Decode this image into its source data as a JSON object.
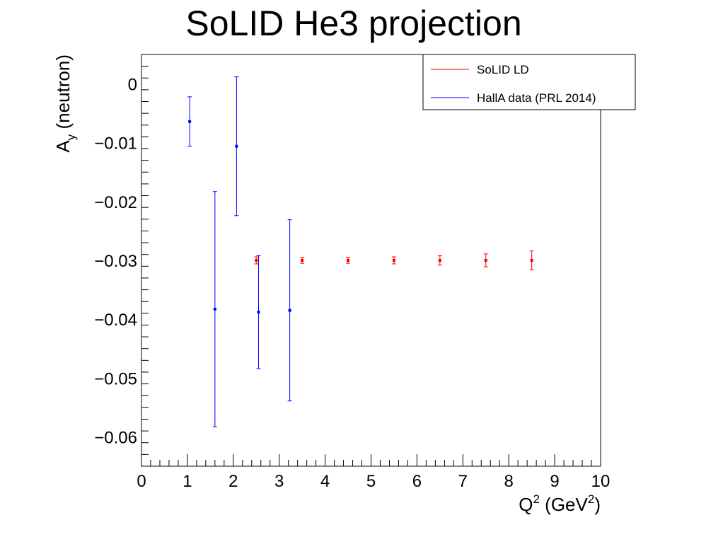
{
  "chart_data": {
    "type": "scatter",
    "title": "SoLID He3 projection",
    "xlabel": {
      "base": "Q",
      "sup": "2",
      "mid": " (GeV",
      "sup2": "2",
      "end": ")"
    },
    "ylabel": {
      "base": "A",
      "sub": "y",
      "rest": " (neutron)"
    },
    "xlim": [
      0,
      10
    ],
    "ylim": [
      -0.065,
      0.005
    ],
    "xticks": [
      0,
      1,
      2,
      3,
      4,
      5,
      6,
      7,
      8,
      9,
      10
    ],
    "xtick_labels": [
      "0",
      "1",
      "2",
      "3",
      "4",
      "5",
      "6",
      "7",
      "8",
      "9",
      "10"
    ],
    "yticks": [
      0,
      -0.01,
      -0.02,
      -0.03,
      -0.04,
      -0.05,
      -0.06
    ],
    "ytick_labels": [
      "0",
      "−0.01",
      "−0.02",
      "−0.03",
      "−0.04",
      "−0.05",
      "−0.06"
    ],
    "grid": false,
    "legend_position": "top-right",
    "series": [
      {
        "name": "SoLID LD",
        "color": "#ff0000",
        "points": [
          {
            "x": 2.5,
            "y": -0.03,
            "err": 0.0006
          },
          {
            "x": 3.5,
            "y": -0.03,
            "err": 0.0005
          },
          {
            "x": 4.5,
            "y": -0.03,
            "err": 0.0005
          },
          {
            "x": 5.5,
            "y": -0.03,
            "err": 0.0006
          },
          {
            "x": 6.5,
            "y": -0.03,
            "err": 0.0008
          },
          {
            "x": 7.5,
            "y": -0.03,
            "err": 0.0011
          },
          {
            "x": 8.5,
            "y": -0.03,
            "err": 0.0016
          }
        ]
      },
      {
        "name": "HallA data (PRL 2014)",
        "color": "#0000ff",
        "points": [
          {
            "x": 1.05,
            "y": -0.0064,
            "err": 0.0042
          },
          {
            "x": 1.6,
            "y": -0.0383,
            "err": 0.02
          },
          {
            "x": 2.07,
            "y": -0.0106,
            "err": 0.0118
          },
          {
            "x": 2.55,
            "y": -0.0388,
            "err": 0.0096
          },
          {
            "x": 3.23,
            "y": -0.0385,
            "err": 0.0154
          }
        ]
      }
    ]
  }
}
